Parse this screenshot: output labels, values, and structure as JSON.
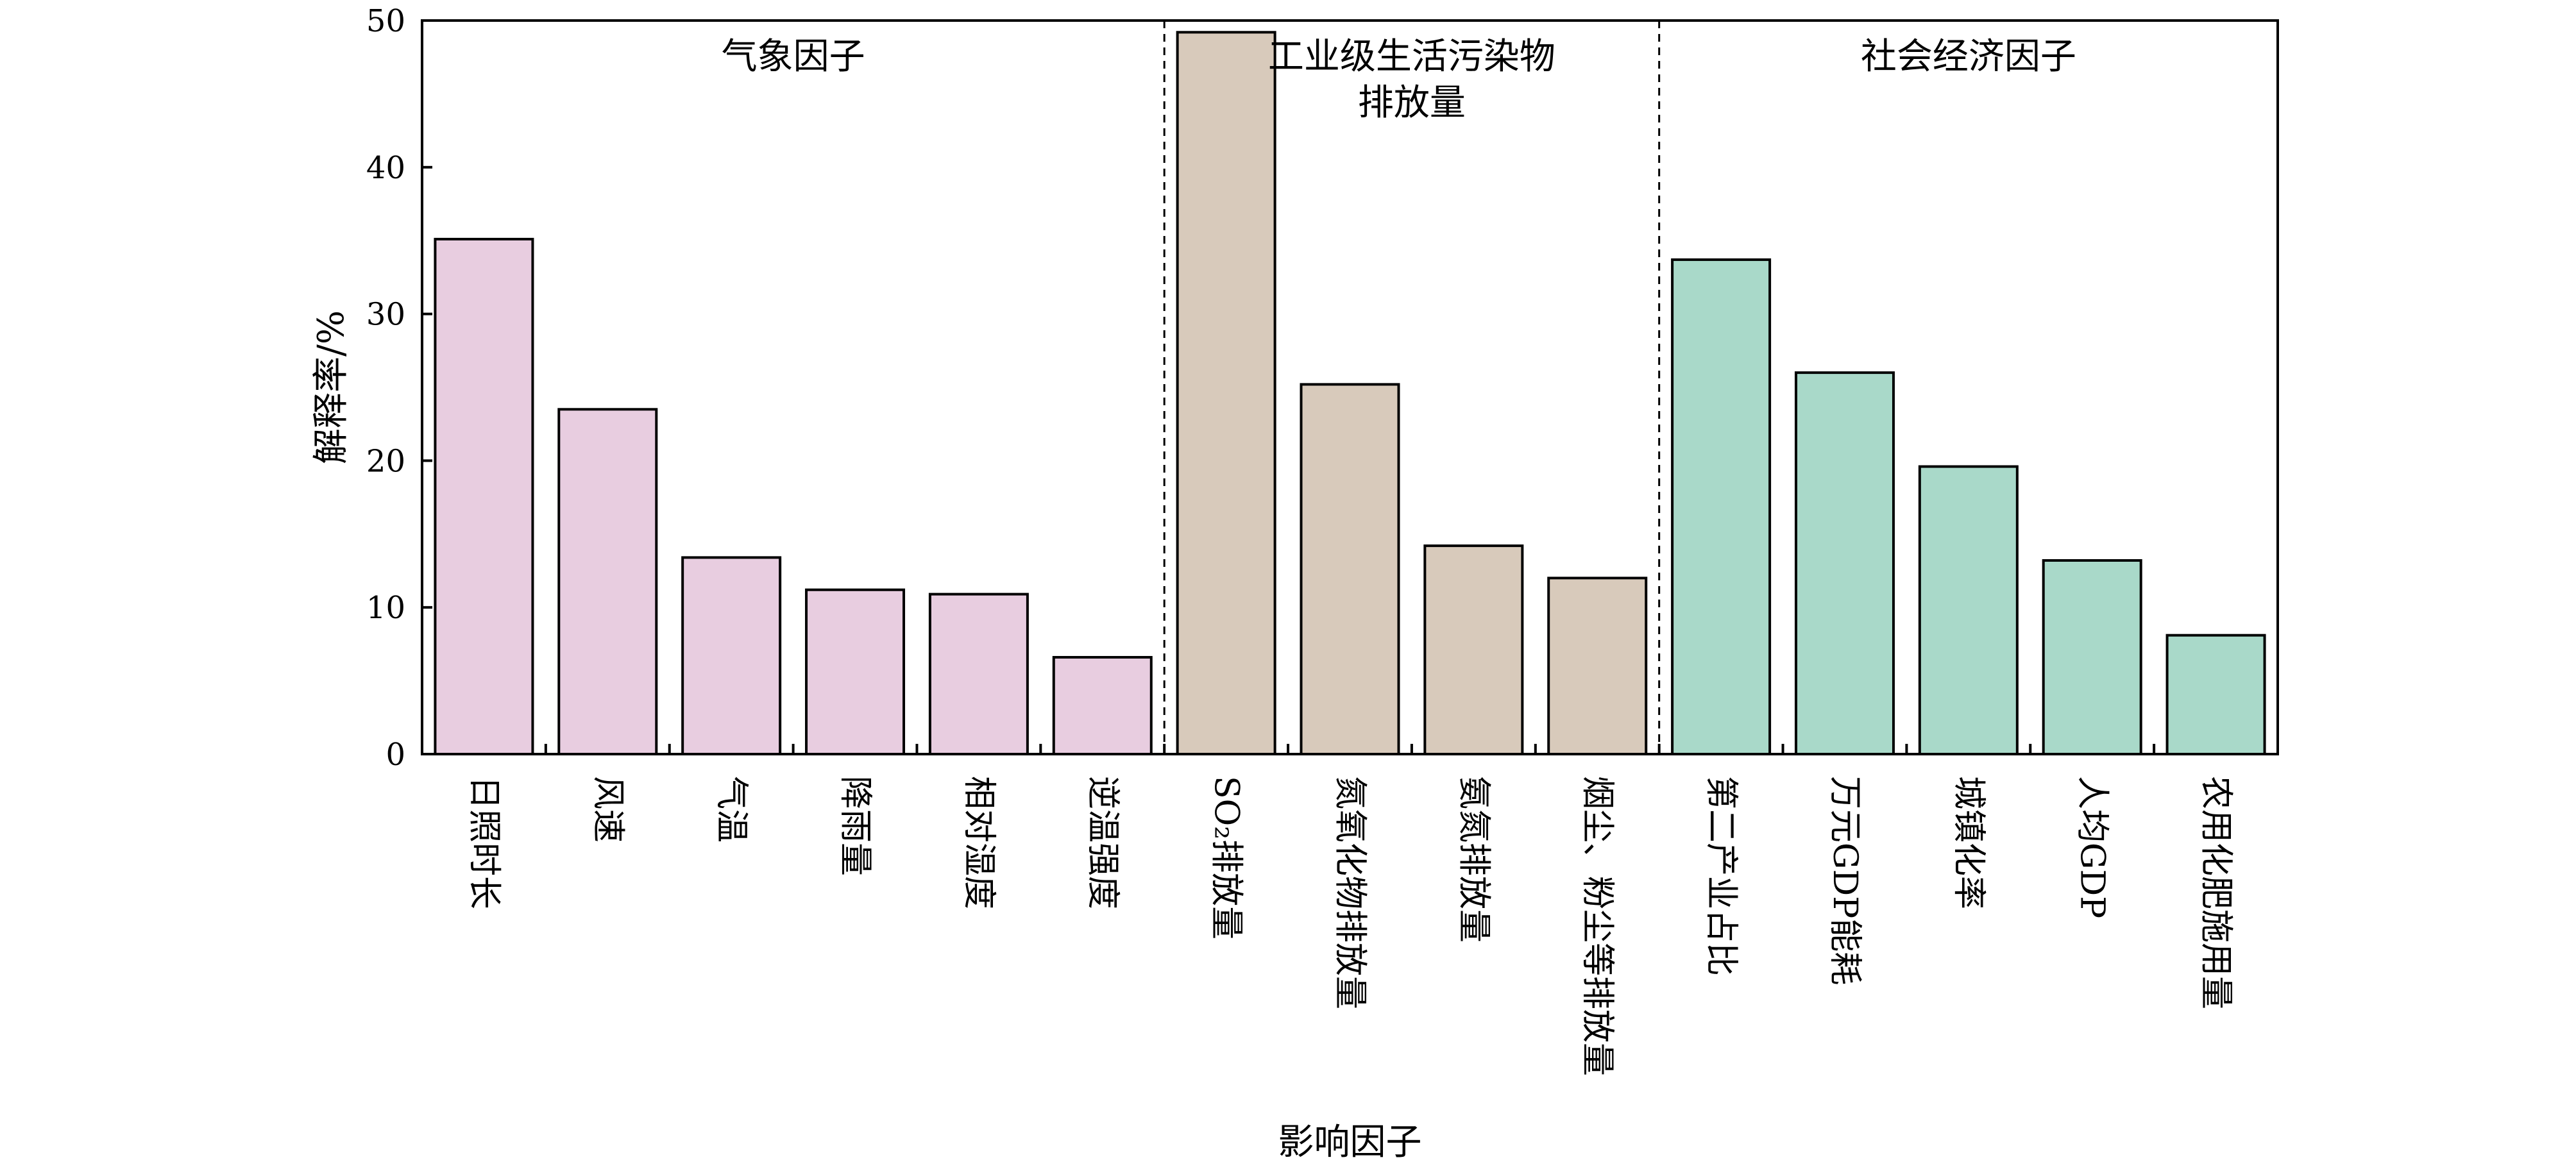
{
  "chart_data": {
    "type": "bar",
    "title": "",
    "xlabel": "影响因子",
    "ylabel": "解释率/%",
    "ylim": [
      0,
      50
    ],
    "yticks": [
      0,
      10,
      20,
      30,
      40,
      50
    ],
    "grid": false,
    "categories": [
      "日照时长",
      "风速",
      "气温",
      "降雨量",
      "相对湿度",
      "逆温强度",
      "SO₂排放量",
      "氮氧化物排放量",
      "氨氮排放量",
      "烟尘、粉尘等排放量",
      "第二产业占比",
      "万元GDP能耗",
      "城镇化率",
      "人均GDP",
      "农用化肥施用量"
    ],
    "values": [
      35.1,
      23.5,
      13.4,
      11.2,
      10.9,
      6.6,
      49.2,
      25.2,
      14.2,
      12.0,
      33.7,
      26.0,
      19.6,
      13.2,
      8.1
    ],
    "groups": [
      {
        "label": "气象因子",
        "color": "#e8cde0",
        "start": 0,
        "count": 6
      },
      {
        "label": "工业级生活污染物排放量",
        "label_lines": [
          "工业级生活污染物",
          "排放量"
        ],
        "color": "#d8cabb",
        "start": 6,
        "count": 4
      },
      {
        "label": "社会经济因子",
        "color": "#a9d9c9",
        "start": 10,
        "count": 5
      }
    ]
  }
}
